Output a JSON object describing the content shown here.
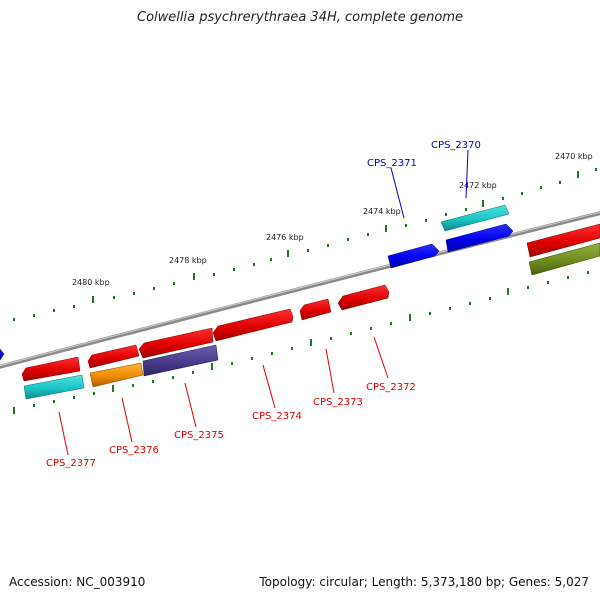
{
  "title": "Colwellia psychrerythraea 34H, complete genome",
  "footer": {
    "accession": "Accession: NC_003910",
    "summary": "Topology: circular; Length: 5,373,180 bp; Genes: 5,027"
  },
  "ticks": [
    {
      "label": "2470 kbp"
    },
    {
      "label": "2472 kbp"
    },
    {
      "label": "2474 kbp"
    },
    {
      "label": "2476 kbp"
    },
    {
      "label": "2478 kbp"
    },
    {
      "label": "2480 kbp"
    }
  ],
  "genes": [
    {
      "label": "CPS_2370",
      "color": "#0000cc"
    },
    {
      "label": "CPS_2371",
      "color": "#0000cc"
    },
    {
      "label": "CPS_2372",
      "color": "#dd0000"
    },
    {
      "label": "CPS_2373",
      "color": "#dd0000"
    },
    {
      "label": "CPS_2374",
      "color": "#dd0000"
    },
    {
      "label": "CPS_2375",
      "color": "#dd0000"
    },
    {
      "label": "CPS_2376",
      "color": "#dd0000"
    },
    {
      "label": "CPS_2377",
      "color": "#dd0000"
    }
  ],
  "colors": {
    "red_feature": "#e00000",
    "blue_feature": "#0000ee",
    "cyan_feature": "#1ac6c6",
    "orange_feature": "#f08c00",
    "purple_feature": "#4a3c8c",
    "olive_feature": "#6e8c1e",
    "backbone": "#808080",
    "tick_green": "#1e7a1e"
  }
}
